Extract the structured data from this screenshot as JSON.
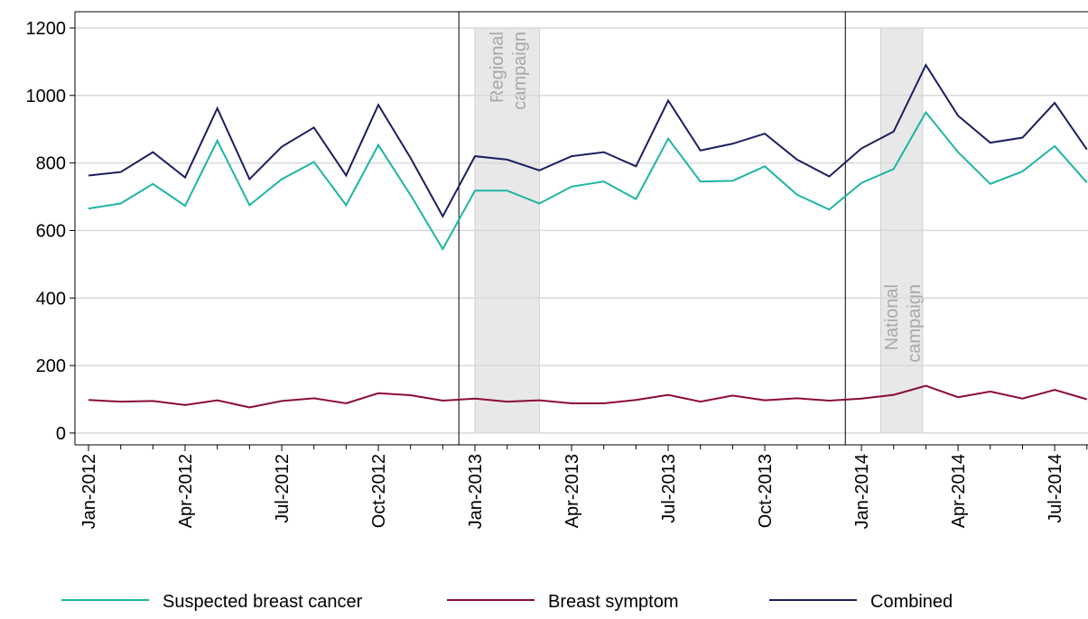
{
  "chart_data": {
    "type": "line",
    "categories": [
      "Jan-2012",
      null,
      null,
      "Apr-2012",
      null,
      null,
      "Jul-2012",
      null,
      null,
      "Oct-2012",
      null,
      null,
      "Jan-2013",
      null,
      null,
      "Apr-2013",
      null,
      null,
      "Jul-2013",
      null,
      null,
      "Oct-2013",
      null,
      null,
      "Jan-2014",
      null,
      null,
      "Apr-2014",
      null,
      null,
      "Jul-2014",
      null
    ],
    "series": [
      {
        "name": "Suspected breast cancer",
        "color": "#1fb5a3",
        "values": [
          665,
          680,
          738,
          673,
          866,
          675,
          752,
          803,
          675,
          853,
          705,
          545,
          718,
          718,
          680,
          730,
          745,
          693,
          872,
          745,
          747,
          790,
          706,
          662,
          741,
          782,
          950,
          832,
          738,
          775,
          850,
          742
        ]
      },
      {
        "name": "Breast symptom",
        "color": "#8b0a3c",
        "values": [
          98,
          93,
          95,
          83,
          97,
          76,
          95,
          103,
          88,
          118,
          112,
          96,
          102,
          93,
          97,
          88,
          88,
          98,
          113,
          93,
          111,
          97,
          103,
          96,
          102,
          113,
          140,
          106,
          123,
          102,
          128,
          100
        ]
      },
      {
        "name": "Combined",
        "color": "#1a1f5e",
        "values": [
          763,
          773,
          832,
          757,
          962,
          752,
          848,
          905,
          763,
          972,
          815,
          642,
          820,
          810,
          778,
          820,
          832,
          790,
          985,
          837,
          857,
          887,
          810,
          760,
          843,
          893,
          1090,
          940,
          860,
          875,
          978,
          840
        ]
      }
    ],
    "ylim": [
      -35,
      1248
    ],
    "yticks": [
      0,
      200,
      400,
      600,
      800,
      1000,
      1200
    ],
    "grid": true,
    "vlines": [
      11.5,
      23.5
    ],
    "annotations": [
      {
        "text": [
          "Regional",
          "campaign"
        ],
        "span": [
          12,
          14
        ]
      },
      {
        "text": [
          "National",
          "campaign"
        ],
        "span": [
          24.6,
          25.9
        ]
      }
    ]
  }
}
